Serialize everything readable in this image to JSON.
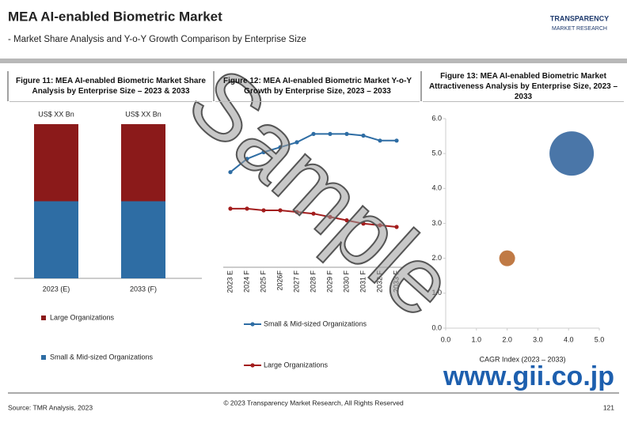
{
  "header": {
    "title": "MEA AI-enabled Biometric Market",
    "subtitle": "- Market Share Analysis and Y-o-Y Growth Comparison by Enterprise Size"
  },
  "logo": {
    "name": "TRANSPARENCY",
    "tagline": "MARKET RESEARCH"
  },
  "chart_data": [
    {
      "type": "bar",
      "stacked": true,
      "title": "Figure 11: MEA AI-enabled Biometric Market Share Analysis by Enterprise Size – 2023 & 2033",
      "categories": [
        "2023 (E)",
        "2033 (F)"
      ],
      "series": [
        {
          "name": "Small & Mid-sized Organizations",
          "color": "#2e6da4",
          "values": [
            50,
            50
          ]
        },
        {
          "name": "Large Organizations",
          "color": "#8b1a1a",
          "values": [
            50,
            50
          ]
        }
      ],
      "total_labels": [
        "US$ XX Bn",
        "US$ XX Bn"
      ],
      "ylim": [
        0,
        100
      ]
    },
    {
      "type": "line",
      "title": "Figure 12: MEA AI-enabled Biometric Market Y-o-Y Growth by Enterprise Size, 2023 – 2033",
      "categories": [
        "2023 E",
        "2024 F",
        "2025 F",
        "2026F",
        "2027 F",
        "2028 F",
        "2029 F",
        "2030 F",
        "2031 F",
        "2032 F",
        "2033 F"
      ],
      "series": [
        {
          "name": "Small & Mid-sized Organizations",
          "color": "#2e6da4",
          "values": [
            6.3,
            7.1,
            7.5,
            7.8,
            8.1,
            8.6,
            8.6,
            8.6,
            8.5,
            8.2,
            8.2
          ]
        },
        {
          "name": "Large Organizations",
          "color": "#a31d1d",
          "values": [
            4.1,
            4.1,
            4.0,
            4.0,
            3.9,
            3.8,
            3.6,
            3.4,
            3.2,
            3.1,
            3.0
          ]
        }
      ],
      "ylim": [
        0,
        10
      ]
    },
    {
      "type": "scatter",
      "title": "Figure 13: MEA AI-enabled Biometric Market Attractiveness Analysis by Enterprise Size, 2023 – 2033",
      "xlabel": "CAGR Index (2023 – 2033)",
      "xlim": [
        0,
        5
      ],
      "ylim": [
        0,
        6
      ],
      "xticks": [
        {
          "value": 0,
          "label": "0.0"
        },
        {
          "value": 1,
          "label": "1.0"
        },
        {
          "value": 2,
          "label": "2.0"
        },
        {
          "value": 3,
          "label": "3.0"
        },
        {
          "value": 4,
          "label": "4.0"
        },
        {
          "value": 5,
          "label": "5.0"
        }
      ],
      "yticks": [
        {
          "value": 0,
          "label": "0.0"
        },
        {
          "value": 1,
          "label": "1.0"
        },
        {
          "value": 2,
          "label": "2.0"
        },
        {
          "value": 3,
          "label": "3.0"
        },
        {
          "value": 4,
          "label": "4.0"
        },
        {
          "value": 5,
          "label": "5.0"
        },
        {
          "value": 6,
          "label": "6.0"
        }
      ],
      "points": [
        {
          "x": 4.1,
          "y": 5.0,
          "size": 28,
          "color": "#4a76a8"
        },
        {
          "x": 2.0,
          "y": 2.0,
          "size": 10,
          "color": "#c07a45"
        }
      ]
    }
  ],
  "footer": {
    "source": "Source: TMR Analysis, 2023",
    "copyright": "© 2023 Transparency Market Research, All Rights Reserved",
    "page": "121"
  },
  "watermark": "Sample",
  "site": "www.gii.co.jp"
}
